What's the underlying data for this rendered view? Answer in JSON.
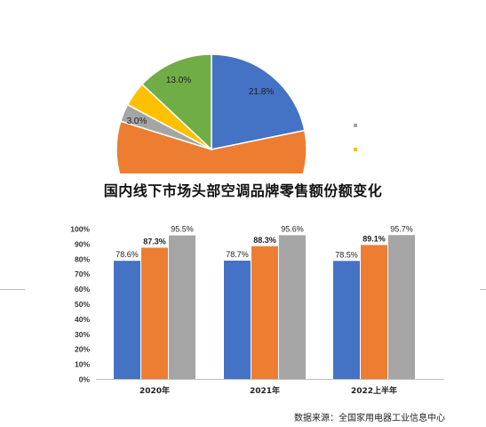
{
  "colors": {
    "blue": "#4472C4",
    "orange": "#ED7D31",
    "gray": "#A5A5A5",
    "yellow": "#FFC000",
    "green": "#70AD47"
  },
  "pie": {
    "slices": [
      {
        "value": 21.8,
        "label": "21.8%",
        "color": "#4472C4"
      },
      {
        "value": 58.0,
        "label": "",
        "color": "#ED7D31"
      },
      {
        "value": 3.0,
        "label": "3.0%",
        "color": "#A5A5A5"
      },
      {
        "value": 4.2,
        "label": "",
        "color": "#FFC000"
      },
      {
        "value": 13.0,
        "label": "13.0%",
        "color": "#70AD47"
      }
    ]
  },
  "chart_data": [
    {
      "type": "pie",
      "values": [
        21.8,
        58.0,
        3.0,
        4.2,
        13.0
      ],
      "labels": [
        "21.8%",
        "",
        "3.0%",
        "",
        "13.0%"
      ],
      "note": "partially cropped"
    },
    {
      "type": "bar",
      "title": "国内线下市场头部空调品牌零售额份额变化",
      "categories": [
        "2020年",
        "2021年",
        "2022上半年"
      ],
      "series": [
        {
          "values": [
            78.6,
            78.7,
            78.5
          ],
          "labels": [
            "78.6%",
            "78.7%",
            "78.5%"
          ],
          "color": "#4472C4"
        },
        {
          "values": [
            87.3,
            88.3,
            89.1
          ],
          "labels": [
            "87.3%",
            "88.3%",
            "89.1%"
          ],
          "color": "#ED7D31"
        },
        {
          "values": [
            95.5,
            95.6,
            95.7
          ],
          "labels": [
            "95.5%",
            "95.6%",
            "95.7%"
          ],
          "color": "#A5A5A5"
        }
      ],
      "yticks": [
        "0%",
        "10%",
        "20%",
        "30%",
        "40%",
        "50%",
        "60%",
        "70%",
        "80%",
        "90%",
        "100%"
      ],
      "ylim": [
        0,
        100
      ],
      "grid": false,
      "legend": "none"
    }
  ],
  "source_text": "数据来源：全国家用电器工业信息中心"
}
